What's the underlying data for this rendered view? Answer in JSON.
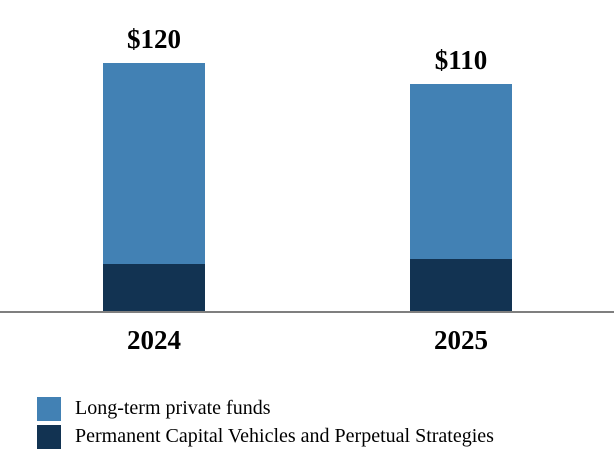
{
  "chart_data": {
    "type": "bar",
    "stacked": true,
    "categories": [
      "2024",
      "2025"
    ],
    "series": [
      {
        "name": "Long-term private funds",
        "color": "#4281B4",
        "values": [
          97,
          85
        ]
      },
      {
        "name": "Permanent Capital Vehicles and Perpetual Strategies",
        "color": "#123352",
        "values": [
          23,
          25
        ]
      }
    ],
    "totals": [
      120,
      110
    ],
    "total_labels": [
      "$120",
      "$110"
    ],
    "ylim": [
      0,
      120
    ],
    "xlabel": "",
    "ylabel": "",
    "title": "",
    "grid": false,
    "legend_position": "bottom-left"
  },
  "colors": {
    "axis_line": "#7F7F7F",
    "background": "#FFFFFF",
    "text": "#000000"
  }
}
